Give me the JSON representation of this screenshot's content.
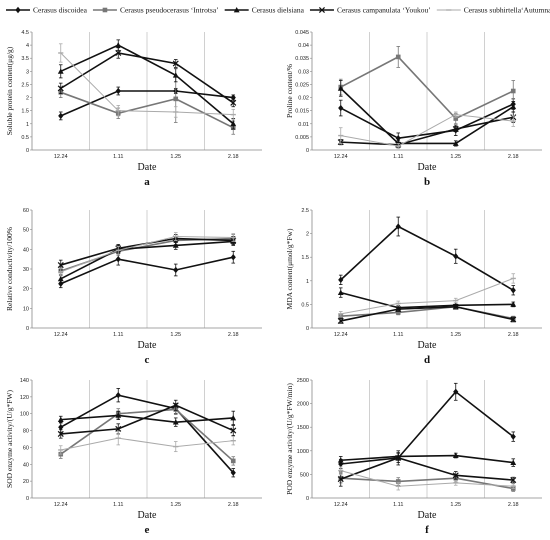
{
  "legend": [
    {
      "name": "Cerasus discoidea",
      "marker": "diamond",
      "color": "#111111"
    },
    {
      "name": "Cerasus pseudocerasus ‘Introtsa’",
      "marker": "square",
      "color": "#777777"
    },
    {
      "name": "Cerasus dielsiana",
      "marker": "triangle",
      "color": "#111111"
    },
    {
      "name": "Cerasus campanulata ‘Youkou’",
      "marker": "x",
      "color": "#111111"
    },
    {
      "name": "Cerasus subhirtella‘Autumnalis’",
      "marker": "dash",
      "color": "#aaaaaa"
    }
  ],
  "chart_data": [
    {
      "type": "line",
      "panel": "a",
      "categories": [
        "12.24",
        "1.11",
        "1.25",
        "2.18"
      ],
      "xlabel": "Date",
      "ylabel": "Soluble protein content(μg/g)",
      "ylim": [
        0,
        4.5
      ],
      "yticks": [
        "0",
        "0.5",
        "1",
        "1.5",
        "2",
        "2.5",
        "3",
        "3.5",
        "4",
        "4.5"
      ],
      "grid": "vertical",
      "series": [
        {
          "name": "Cerasus discoidea",
          "values": [
            1.3,
            2.25,
            2.25,
            2.0
          ],
          "errors": [
            0.15,
            0.15,
            0.1,
            0.1
          ]
        },
        {
          "name": "Cerasus pseudocerasus ‘Introtsa’",
          "values": [
            2.2,
            1.4,
            1.95,
            0.85
          ],
          "errors": [
            0.2,
            0.2,
            0.9,
            0.25
          ]
        },
        {
          "name": "Cerasus dielsiana",
          "values": [
            3.0,
            4.0,
            2.85,
            1.0
          ],
          "errors": [
            0.25,
            0.2,
            0.25,
            0.2
          ]
        },
        {
          "name": "Cerasus campanulata ‘Youkou’",
          "values": [
            2.35,
            3.7,
            3.3,
            1.8
          ],
          "errors": [
            0.2,
            0.2,
            0.15,
            0.15
          ]
        },
        {
          "name": "Cerasus subhirtella‘Autumnalis’",
          "values": [
            3.7,
            1.5,
            1.45,
            1.35
          ],
          "errors": [
            0.35,
            0.2,
            0.2,
            0.2
          ]
        }
      ]
    },
    {
      "type": "line",
      "panel": "b",
      "categories": [
        "12.24",
        "1.11",
        "1.25",
        "2.18"
      ],
      "xlabel": "Date",
      "ylabel": "Proline content/%",
      "ylim": [
        0,
        0.045
      ],
      "yticks": [
        "0",
        "0.005",
        "0.01",
        "0.015",
        "0.02",
        "0.025",
        "0.03",
        "0.035",
        "0.04",
        "0.045"
      ],
      "grid": "vertical",
      "series": [
        {
          "name": "Cerasus discoidea",
          "values": [
            0.016,
            0.0045,
            0.0075,
            0.0175
          ],
          "errors": [
            0.003,
            0.002,
            0.002,
            0.002
          ]
        },
        {
          "name": "Cerasus pseudocerasus ‘Introtsa’",
          "values": [
            0.024,
            0.0355,
            0.012,
            0.0225
          ],
          "errors": [
            0.003,
            0.004,
            0.002,
            0.004
          ]
        },
        {
          "name": "Cerasus dielsiana",
          "values": [
            0.0235,
            0.0025,
            0.0025,
            0.0165
          ],
          "errors": [
            0.003,
            0.001,
            0.001,
            0.002
          ]
        },
        {
          "name": "Cerasus campanulata ‘Youkou’",
          "values": [
            0.003,
            0.002,
            0.008,
            0.0125
          ],
          "errors": [
            0.001,
            0.001,
            0.001,
            0.002
          ]
        },
        {
          "name": "Cerasus subhirtella‘Autumnalis’",
          "values": [
            0.0055,
            0.0015,
            0.0135,
            0.011
          ],
          "errors": [
            0.003,
            0.001,
            0.001,
            0.002
          ]
        }
      ]
    },
    {
      "type": "line",
      "panel": "c",
      "categories": [
        "12.24",
        "1.11",
        "1.25",
        "2.18"
      ],
      "xlabel": "Date",
      "ylabel": "Relative conductivity/100%",
      "ylim": [
        0,
        60
      ],
      "yticks": [
        "0",
        "10",
        "20",
        "30",
        "40",
        "50",
        "60"
      ],
      "grid": "vertical",
      "series": [
        {
          "name": "Cerasus discoidea",
          "values": [
            22.5,
            35.0,
            29.5,
            36.0
          ],
          "errors": [
            2.0,
            3.0,
            3.0,
            3.0
          ]
        },
        {
          "name": "Cerasus pseudocerasus ‘Introtsa’",
          "values": [
            29.0,
            39.0,
            44.5,
            45.5
          ],
          "errors": [
            2.0,
            2.0,
            2.0,
            2.0
          ]
        },
        {
          "name": "Cerasus dielsiana",
          "values": [
            25.0,
            40.0,
            42.0,
            44.0
          ],
          "errors": [
            2.0,
            2.0,
            2.0,
            2.0
          ]
        },
        {
          "name": "Cerasus campanulata ‘Youkou’",
          "values": [
            32.0,
            40.5,
            45.5,
            44.5
          ],
          "errors": [
            2.5,
            2.0,
            2.0,
            2.0
          ]
        },
        {
          "name": "Cerasus subhirtella‘Autumnalis’",
          "values": [
            28.5,
            39.5,
            46.5,
            46.0
          ],
          "errors": [
            2.0,
            2.0,
            2.0,
            2.0
          ]
        }
      ]
    },
    {
      "type": "line",
      "panel": "d",
      "categories": [
        "12.24",
        "1.11",
        "1.25",
        "2.18"
      ],
      "xlabel": "Date",
      "ylabel": "MDA content(μmol/g*Fw)",
      "ylim": [
        0,
        2.5
      ],
      "yticks": [
        "0",
        "0.5",
        "1",
        "1.5",
        "2",
        "2.5"
      ],
      "grid": "vertical",
      "series": [
        {
          "name": "Cerasus discoidea",
          "values": [
            1.02,
            2.15,
            1.52,
            0.8
          ],
          "errors": [
            0.1,
            0.2,
            0.15,
            0.1
          ]
        },
        {
          "name": "Cerasus pseudocerasus ‘Introtsa’",
          "values": [
            0.25,
            0.33,
            0.45,
            0.2
          ],
          "errors": [
            0.05,
            0.05,
            0.05,
            0.05
          ]
        },
        {
          "name": "Cerasus dielsiana",
          "values": [
            0.75,
            0.43,
            0.48,
            0.5
          ],
          "errors": [
            0.1,
            0.05,
            0.05,
            0.05
          ]
        },
        {
          "name": "Cerasus campanulata ‘Youkou’",
          "values": [
            0.15,
            0.4,
            0.45,
            0.18
          ],
          "errors": [
            0.05,
            0.05,
            0.05,
            0.05
          ]
        },
        {
          "name": "Cerasus subhirtella‘Autumnalis’",
          "values": [
            0.3,
            0.52,
            0.58,
            1.05
          ],
          "errors": [
            0.05,
            0.05,
            0.05,
            0.1
          ]
        }
      ]
    },
    {
      "type": "line",
      "panel": "e",
      "categories": [
        "12.24",
        "1.11",
        "1.25",
        "2.18"
      ],
      "xlabel": "Date",
      "ylabel": "SOD enzyme activity/(U/g*FW)",
      "ylim": [
        0,
        140
      ],
      "yticks": [
        "0",
        "20",
        "40",
        "60",
        "80",
        "100",
        "120",
        "140"
      ],
      "grid": "vertical",
      "series": [
        {
          "name": "Cerasus discoidea",
          "values": [
            84,
            122,
            106,
            30
          ],
          "errors": [
            6,
            8,
            6,
            5
          ]
        },
        {
          "name": "Cerasus pseudocerasus ‘Introtsa’",
          "values": [
            52,
            100,
            105,
            44
          ],
          "errors": [
            5,
            6,
            6,
            5
          ]
        },
        {
          "name": "Cerasus dielsiana",
          "values": [
            93,
            98,
            90,
            95
          ],
          "errors": [
            4,
            5,
            5,
            8
          ]
        },
        {
          "name": "Cerasus campanulata ‘Youkou’",
          "values": [
            76,
            82,
            110,
            80
          ],
          "errors": [
            5,
            6,
            6,
            6
          ]
        },
        {
          "name": "Cerasus subhirtella‘Autumnalis’",
          "values": [
            57,
            71,
            61,
            68
          ],
          "errors": [
            5,
            8,
            6,
            5
          ]
        }
      ]
    },
    {
      "type": "line",
      "panel": "f",
      "categories": [
        "12.24",
        "1.11",
        "1.25",
        "2.18"
      ],
      "xlabel": "Date",
      "ylabel": "POD enzyme activity/(U/g*FW/min)",
      "ylim": [
        0,
        2500
      ],
      "yticks": [
        "0",
        "500",
        "1000",
        "1500",
        "2000",
        "2500"
      ],
      "grid": "vertical",
      "series": [
        {
          "name": "Cerasus discoidea",
          "values": [
            720,
            850,
            2250,
            1300
          ],
          "errors": [
            100,
            100,
            180,
            100
          ]
        },
        {
          "name": "Cerasus pseudocerasus ‘Introtsa’",
          "values": [
            420,
            350,
            420,
            200
          ],
          "errors": [
            100,
            80,
            80,
            60
          ]
        },
        {
          "name": "Cerasus dielsiana",
          "values": [
            800,
            880,
            900,
            750
          ],
          "errors": [
            80,
            80,
            50,
            80
          ]
        },
        {
          "name": "Cerasus campanulata ‘Youkou’",
          "values": [
            400,
            850,
            480,
            380
          ],
          "errors": [
            150,
            150,
            80,
            60
          ]
        },
        {
          "name": "Cerasus subhirtella‘Autumnalis’",
          "values": [
            580,
            250,
            320,
            250
          ],
          "errors": [
            80,
            80,
            50,
            50
          ]
        }
      ]
    }
  ]
}
